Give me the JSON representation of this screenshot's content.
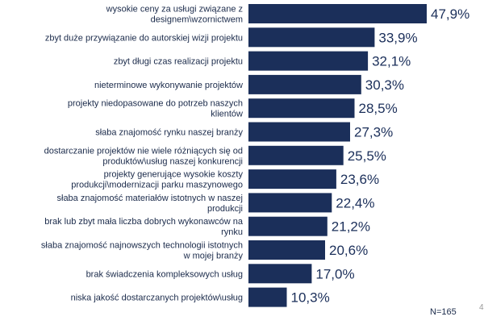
{
  "chart_data": {
    "type": "bar",
    "orientation": "horizontal",
    "categories": [
      [
        "wysokie ceny za usługi związane z",
        "designem\\wzornictwem"
      ],
      [
        "zbyt duże przywiązanie do autorskiej wizji projektu"
      ],
      [
        "zbyt długi czas realizacji projektu"
      ],
      [
        "nieterminowe wykonywanie projektów"
      ],
      [
        "projekty niedopasowane do potrzeb naszych",
        "klientów"
      ],
      [
        "słaba znajomość rynku naszej branży"
      ],
      [
        "dostarczanie projektów nie wiele różniących się od",
        "produktów\\usług naszej konkurencji"
      ],
      [
        "projekty generujące wysokie koszty",
        "produkcji\\modernizacji parku maszynowego"
      ],
      [
        "słaba znajomość materiałów istotnych w naszej",
        "produkcji"
      ],
      [
        "brak lub zbyt mała liczba dobrych wykonawców na",
        "rynku"
      ],
      [
        "słaba znajomość najnowszych technologii istotnych",
        "w mojej branży"
      ],
      [
        "brak świadczenia kompleksowych usług"
      ],
      [
        "niska jakość dostarczanych projektów\\usług"
      ]
    ],
    "values": [
      47.9,
      33.9,
      32.1,
      30.3,
      28.5,
      27.3,
      25.5,
      23.6,
      22.4,
      21.2,
      20.6,
      17.0,
      10.3
    ],
    "value_labels": [
      "47,9%",
      "33,9%",
      "32,1%",
      "30,3%",
      "28,5%",
      "27,3%",
      "25,5%",
      "23,6%",
      "22,4%",
      "21,2%",
      "20,6%",
      "17,0%",
      "10,3%"
    ],
    "xlim": [
      0,
      47.9
    ],
    "unit": "%",
    "bar_color": "#1b2f5a",
    "annotation": "N=165",
    "edge_glyph": "4"
  }
}
